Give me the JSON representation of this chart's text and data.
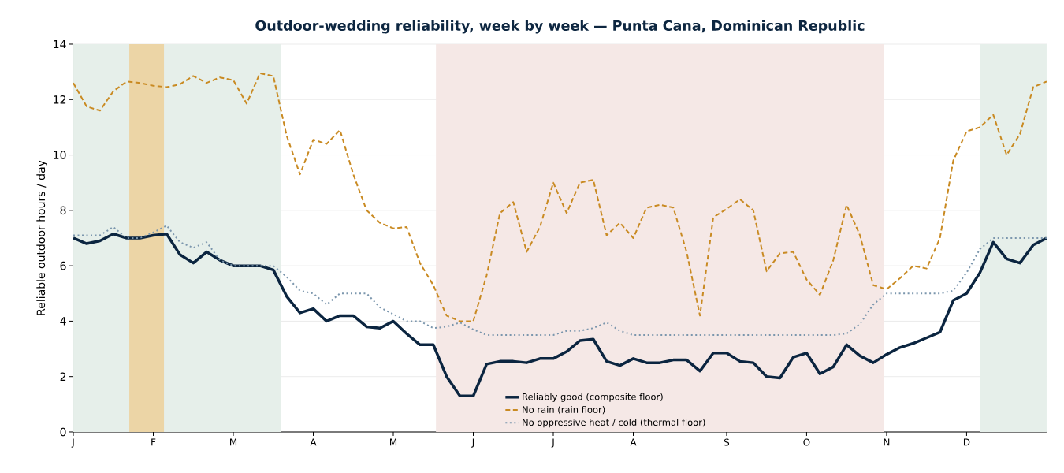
{
  "chart_data": {
    "type": "line",
    "title": "Outdoor-wedding reliability, week by week — Punta Cana, Dominican Republic",
    "ylabel": "Reliable outdoor hours / day",
    "categories": [
      "J",
      null,
      null,
      null,
      null,
      null,
      "F",
      null,
      null,
      null,
      null,
      null,
      "M",
      null,
      null,
      null,
      null,
      null,
      "A",
      null,
      null,
      null,
      null,
      null,
      "M",
      null,
      null,
      null,
      null,
      null,
      "J",
      null,
      null,
      null,
      null,
      null,
      "J",
      null,
      null,
      null,
      null,
      null,
      "A",
      null,
      null,
      null,
      null,
      null,
      null,
      "S",
      null,
      null,
      null,
      null,
      null,
      "O",
      null,
      null,
      null,
      null,
      null,
      "N",
      null,
      null,
      null,
      null,
      null,
      "D",
      null,
      null,
      null,
      null,
      null,
      null
    ],
    "ylim": [
      0,
      14
    ],
    "yticks": [
      0,
      2,
      4,
      6,
      8,
      10,
      12,
      14
    ],
    "grid": "y",
    "legend": "bottom",
    "series": [
      {
        "name": "Reliably good (composite floor)",
        "color": "#0b2540",
        "line_style": "solid",
        "values": [
          7.0,
          6.8,
          6.9,
          7.15,
          7.0,
          7.0,
          7.1,
          7.15,
          6.4,
          6.1,
          6.5,
          6.2,
          6.0,
          6.0,
          6.0,
          5.85,
          4.9,
          4.3,
          4.45,
          4.0,
          4.2,
          4.2,
          3.8,
          3.75,
          4.0,
          3.55,
          3.15,
          3.15,
          2.0,
          1.3,
          1.3,
          2.45,
          2.55,
          2.55,
          2.5,
          2.65,
          2.65,
          2.9,
          3.3,
          3.35,
          2.55,
          2.4,
          2.65,
          2.5,
          2.5,
          2.6,
          2.6,
          2.2,
          2.85,
          2.85,
          2.55,
          2.5,
          2.0,
          1.95,
          2.7,
          2.85,
          2.1,
          2.35,
          3.15,
          2.75,
          2.5,
          2.8,
          3.05,
          3.2,
          3.4,
          3.6,
          4.75,
          5.0,
          5.75,
          6.85,
          6.25,
          6.1,
          6.75,
          7.0
        ]
      },
      {
        "name": "No rain (rain floor)",
        "color": "#c98a22",
        "line_style": "dashed",
        "values": [
          12.6,
          11.75,
          11.6,
          12.3,
          12.65,
          12.6,
          12.5,
          12.45,
          12.55,
          12.85,
          12.6,
          12.8,
          12.7,
          11.85,
          12.95,
          12.85,
          10.7,
          9.3,
          10.55,
          10.4,
          10.9,
          9.3,
          8.0,
          7.55,
          7.35,
          7.4,
          6.1,
          5.3,
          4.2,
          4.0,
          4.0,
          5.65,
          7.9,
          8.3,
          6.5,
          7.4,
          9.0,
          7.9,
          9.0,
          9.1,
          7.1,
          7.55,
          7.0,
          8.1,
          8.2,
          8.1,
          6.5,
          4.2,
          7.75,
          8.05,
          8.4,
          8.0,
          5.8,
          6.45,
          6.5,
          5.5,
          4.95,
          6.2,
          8.2,
          7.1,
          5.3,
          5.15,
          5.55,
          6.0,
          5.9,
          7.0,
          9.8,
          10.85,
          11.0,
          11.45,
          10.0,
          10.75,
          12.45,
          12.65
        ]
      },
      {
        "name": "No oppressive heat / cold (thermal floor)",
        "color": "#7b96ad",
        "line_style": "dotted",
        "values": [
          7.1,
          7.1,
          7.1,
          7.4,
          7.0,
          7.0,
          7.2,
          7.45,
          6.85,
          6.65,
          6.85,
          6.2,
          6.0,
          6.0,
          6.0,
          6.0,
          5.6,
          5.1,
          5.0,
          4.6,
          5.0,
          5.0,
          5.0,
          4.5,
          4.25,
          4.0,
          4.0,
          3.75,
          3.8,
          3.95,
          3.7,
          3.5,
          3.5,
          3.5,
          3.5,
          3.5,
          3.5,
          3.65,
          3.65,
          3.75,
          3.95,
          3.65,
          3.5,
          3.5,
          3.5,
          3.5,
          3.5,
          3.5,
          3.5,
          3.5,
          3.5,
          3.5,
          3.5,
          3.5,
          3.5,
          3.5,
          3.5,
          3.5,
          3.55,
          3.9,
          4.6,
          5.0,
          5.0,
          5.0,
          5.0,
          5.0,
          5.1,
          5.75,
          6.6,
          7.0,
          7.0,
          7.0,
          7.0,
          7.0
        ]
      }
    ]
  }
}
